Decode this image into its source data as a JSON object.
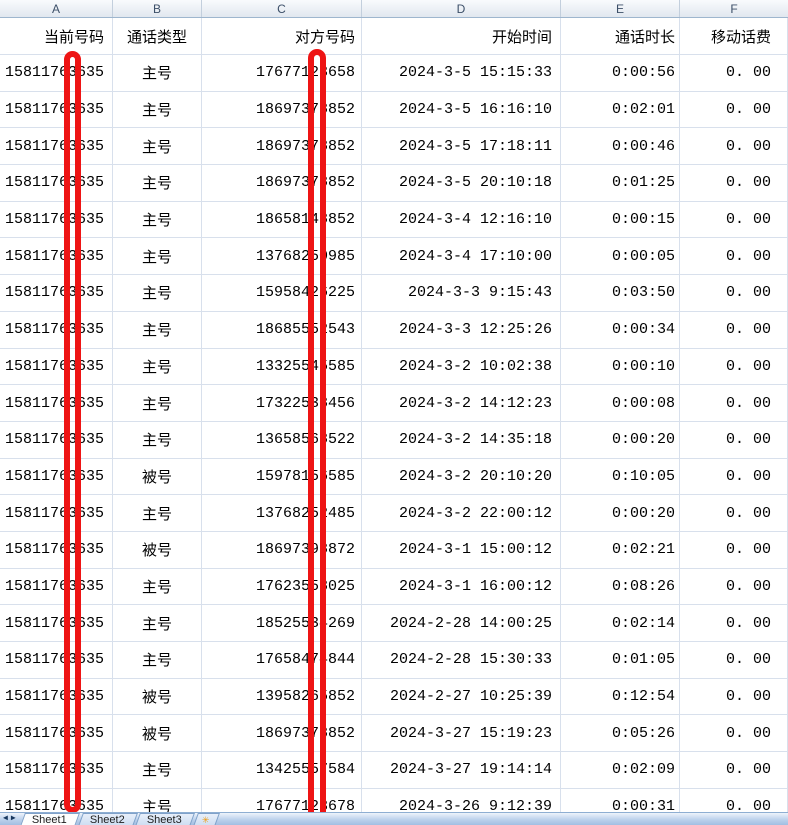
{
  "sheet": {
    "column_letters": [
      "A",
      "B",
      "C",
      "D",
      "E",
      "F"
    ],
    "headers": {
      "a": "当前号码",
      "b": "通话类型",
      "c": "对方号码",
      "d": "开始时间",
      "e": "通话时长",
      "f": "移动话费"
    },
    "rows": [
      {
        "a": "15811763635",
        "b": "主号",
        "c": "17677123658",
        "d": "2024-3-5 15:15:33",
        "e": "0:00:56",
        "f": "0. 00"
      },
      {
        "a": "15811763635",
        "b": "主号",
        "c": "18697378852",
        "d": "2024-3-5 16:16:10",
        "e": "0:02:01",
        "f": "0. 00"
      },
      {
        "a": "15811763635",
        "b": "主号",
        "c": "18697378852",
        "d": "2024-3-5 17:18:11",
        "e": "0:00:46",
        "f": "0. 00"
      },
      {
        "a": "15811763635",
        "b": "主号",
        "c": "18697378852",
        "d": "2024-3-5 20:10:18",
        "e": "0:01:25",
        "f": "0. 00"
      },
      {
        "a": "15811763635",
        "b": "主号",
        "c": "18658148852",
        "d": "2024-3-4 12:16:10",
        "e": "0:00:15",
        "f": "0. 00"
      },
      {
        "a": "15811763635",
        "b": "主号",
        "c": "13768250985",
        "d": "2024-3-4 17:10:00",
        "e": "0:00:05",
        "f": "0. 00"
      },
      {
        "a": "15811763635",
        "b": "主号",
        "c": "15958426225",
        "d": "2024-3-3 9:15:43",
        "e": "0:03:50",
        "f": "0. 00"
      },
      {
        "a": "15811763635",
        "b": "主号",
        "c": "18685552543",
        "d": "2024-3-3 12:25:26",
        "e": "0:00:34",
        "f": "0. 00"
      },
      {
        "a": "15811763635",
        "b": "主号",
        "c": "13325545585",
        "d": "2024-3-2 10:02:38",
        "e": "0:00:10",
        "f": "0. 00"
      },
      {
        "a": "15811763635",
        "b": "主号",
        "c": "17322538456",
        "d": "2024-3-2 14:12:23",
        "e": "0:00:08",
        "f": "0. 00"
      },
      {
        "a": "15811763635",
        "b": "主号",
        "c": "13658568522",
        "d": "2024-3-2 14:35:18",
        "e": "0:00:20",
        "f": "0. 00"
      },
      {
        "a": "15811763635",
        "b": "被号",
        "c": "15978156585",
        "d": "2024-3-2 20:10:20",
        "e": "0:10:05",
        "f": "0. 00"
      },
      {
        "a": "15811763635",
        "b": "主号",
        "c": "13768252485",
        "d": "2024-3-2 22:00:12",
        "e": "0:00:20",
        "f": "0. 00"
      },
      {
        "a": "15811763635",
        "b": "被号",
        "c": "18697398872",
        "d": "2024-3-1 15:00:12",
        "e": "0:02:21",
        "f": "0. 00"
      },
      {
        "a": "15811763635",
        "b": "主号",
        "c": "17623558025",
        "d": "2024-3-1 16:00:12",
        "e": "0:08:26",
        "f": "0. 00"
      },
      {
        "a": "15811763635",
        "b": "主号",
        "c": "18525534269",
        "d": "2024-2-28 14:00:25",
        "e": "0:02:14",
        "f": "0. 00"
      },
      {
        "a": "15811763635",
        "b": "主号",
        "c": "17658474844",
        "d": "2024-2-28 15:30:33",
        "e": "0:01:05",
        "f": "0. 00"
      },
      {
        "a": "15811763635",
        "b": "被号",
        "c": "13958265852",
        "d": "2024-2-27 10:25:39",
        "e": "0:12:54",
        "f": "0. 00"
      },
      {
        "a": "15811763635",
        "b": "被号",
        "c": "18697378852",
        "d": "2024-3-27 15:19:23",
        "e": "0:05:26",
        "f": "0. 00"
      },
      {
        "a": "15811763635",
        "b": "主号",
        "c": "13425557584",
        "d": "2024-3-27 19:14:14",
        "e": "0:02:09",
        "f": "0. 00"
      },
      {
        "a": "15811763635",
        "b": "主号",
        "c": "17677123678",
        "d": "2024-3-26 9:12:39",
        "e": "0:00:31",
        "f": "0. 00"
      }
    ]
  },
  "tabbar": {
    "tabs": [
      "Sheet1",
      "Sheet2",
      "Sheet3"
    ],
    "active_tab": "Sheet1",
    "nav_prev": "◀",
    "nav_next": "▶",
    "insert_icon": "✳"
  },
  "annotation": {
    "redaction_color": "#ee1414"
  }
}
